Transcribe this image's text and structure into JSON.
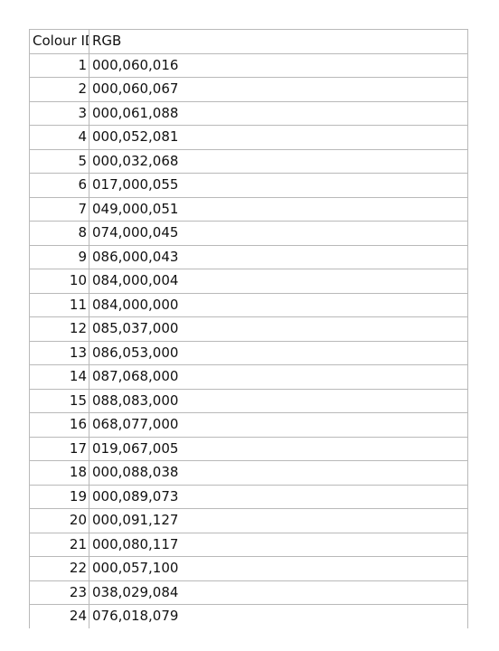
{
  "table": {
    "headers": {
      "id": "Colour ID",
      "rgb": "RGB"
    },
    "rows": [
      {
        "id": "1",
        "rgb": "000,060,016"
      },
      {
        "id": "2",
        "rgb": "000,060,067"
      },
      {
        "id": "3",
        "rgb": "000,061,088"
      },
      {
        "id": "4",
        "rgb": "000,052,081"
      },
      {
        "id": "5",
        "rgb": "000,032,068"
      },
      {
        "id": "6",
        "rgb": "017,000,055"
      },
      {
        "id": "7",
        "rgb": "049,000,051"
      },
      {
        "id": "8",
        "rgb": "074,000,045"
      },
      {
        "id": "9",
        "rgb": "086,000,043"
      },
      {
        "id": "10",
        "rgb": "084,000,004"
      },
      {
        "id": "11",
        "rgb": "084,000,000"
      },
      {
        "id": "12",
        "rgb": "085,037,000"
      },
      {
        "id": "13",
        "rgb": "086,053,000"
      },
      {
        "id": "14",
        "rgb": "087,068,000"
      },
      {
        "id": "15",
        "rgb": "088,083,000"
      },
      {
        "id": "16",
        "rgb": "068,077,000"
      },
      {
        "id": "17",
        "rgb": "019,067,005"
      },
      {
        "id": "18",
        "rgb": "000,088,038"
      },
      {
        "id": "19",
        "rgb": "000,089,073"
      },
      {
        "id": "20",
        "rgb": "000,091,127"
      },
      {
        "id": "21",
        "rgb": "000,080,117"
      },
      {
        "id": "22",
        "rgb": "000,057,100"
      },
      {
        "id": "23",
        "rgb": "038,029,084"
      },
      {
        "id": "24",
        "rgb": "076,018,079"
      }
    ]
  }
}
